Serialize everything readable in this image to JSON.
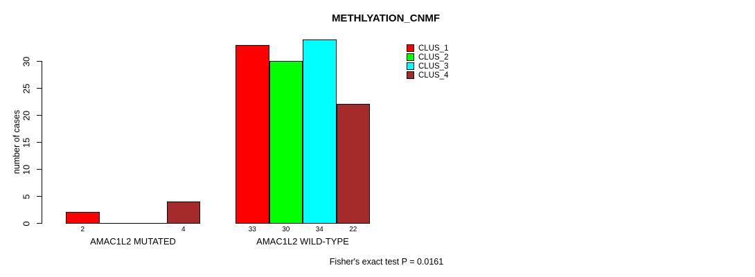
{
  "chart_data": {
    "type": "bar",
    "title": "METHLYATION_CNMF",
    "ylabel": "number of cases",
    "xlabel": "",
    "yticks": [
      0,
      5,
      10,
      15,
      20,
      25,
      30
    ],
    "ylim": [
      0,
      34
    ],
    "grid": false,
    "legend_position": "top-right",
    "series": [
      {
        "name": "CLUS_1",
        "color": "#ff0000"
      },
      {
        "name": "CLUS_2",
        "color": "#00ff00"
      },
      {
        "name": "CLUS_3",
        "color": "#00ffff"
      },
      {
        "name": "CLUS_4",
        "color": "#a52a2a"
      }
    ],
    "groups": [
      {
        "label": "AMAC1L2 MUTATED",
        "values": [
          2,
          0,
          0,
          4
        ]
      },
      {
        "label": "AMAC1L2 WILD-TYPE",
        "values": [
          33,
          30,
          34,
          22
        ]
      }
    ],
    "bar_value_labels": [
      "2",
      "4",
      "33",
      "30",
      "34",
      "22"
    ],
    "annotation": "Fisher's exact test P = 0.0161"
  }
}
